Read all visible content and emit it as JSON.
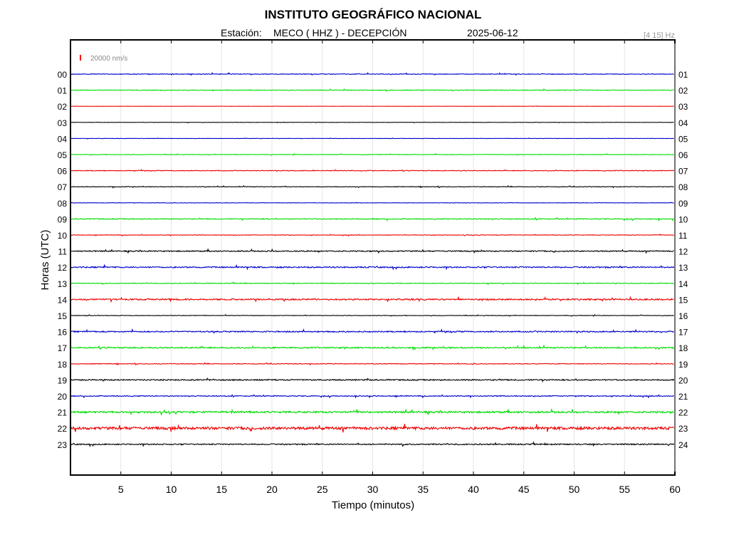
{
  "header": {
    "title": "INSTITUTO GEOGRÁFICO NACIONAL",
    "station_prefix": "Estación:",
    "station": "MECO ( HHZ ) - DECEPCIÓN",
    "date": "2025-06-12",
    "filter": "[4 15] Hz"
  },
  "scale": {
    "label": "20000 nm/s",
    "color": "#ff0000"
  },
  "chart_data": {
    "type": "line",
    "title": "INSTITUTO GEOGRÁFICO NACIONAL",
    "xlabel": "Tiempo (minutos)",
    "ylabel": "Horas (UTC)",
    "xlim": [
      0,
      60
    ],
    "x_ticks": [
      "5",
      "10",
      "15",
      "20",
      "25",
      "30",
      "35",
      "40",
      "45",
      "50",
      "55",
      "60"
    ],
    "y_ticks_left": [
      "00",
      "01",
      "02",
      "03",
      "04",
      "05",
      "06",
      "07",
      "08",
      "09",
      "10",
      "11",
      "12",
      "13",
      "14",
      "15",
      "16",
      "17",
      "18",
      "19",
      "20",
      "21",
      "22",
      "23"
    ],
    "y_ticks_right": [
      "01",
      "02",
      "03",
      "04",
      "05",
      "06",
      "07",
      "08",
      "09",
      "10",
      "11",
      "12",
      "13",
      "14",
      "15",
      "16",
      "17",
      "18",
      "19",
      "20",
      "21",
      "22",
      "23",
      "24"
    ],
    "grid": false,
    "color_cycle": [
      "#0000cc",
      "#00dd00",
      "#ee0000",
      "#000000"
    ],
    "series": [
      {
        "hour": "00",
        "noise": 0.45
      },
      {
        "hour": "01",
        "noise": 0.45
      },
      {
        "hour": "02",
        "noise": 0.12
      },
      {
        "hour": "03",
        "noise": 0.2
      },
      {
        "hour": "04",
        "noise": 0.2
      },
      {
        "hour": "05",
        "noise": 0.35
      },
      {
        "hour": "06",
        "noise": 0.45
      },
      {
        "hour": "07",
        "noise": 0.4
      },
      {
        "hour": "08",
        "noise": 0.25
      },
      {
        "hour": "09",
        "noise": 0.6
      },
      {
        "hour": "10",
        "noise": 0.35
      },
      {
        "hour": "11",
        "noise": 0.75
      },
      {
        "hour": "12",
        "noise": 0.85
      },
      {
        "hour": "13",
        "noise": 0.45
      },
      {
        "hour": "14",
        "noise": 0.95
      },
      {
        "hour": "15",
        "noise": 0.35
      },
      {
        "hour": "16",
        "noise": 0.8
      },
      {
        "hour": "17",
        "noise": 0.9
      },
      {
        "hour": "18",
        "noise": 0.45
      },
      {
        "hour": "19",
        "noise": 0.8
      },
      {
        "hour": "20",
        "noise": 0.6
      },
      {
        "hour": "21",
        "noise": 1.2
      },
      {
        "hour": "22",
        "noise": 1.8
      },
      {
        "hour": "23",
        "noise": 0.8
      }
    ]
  }
}
